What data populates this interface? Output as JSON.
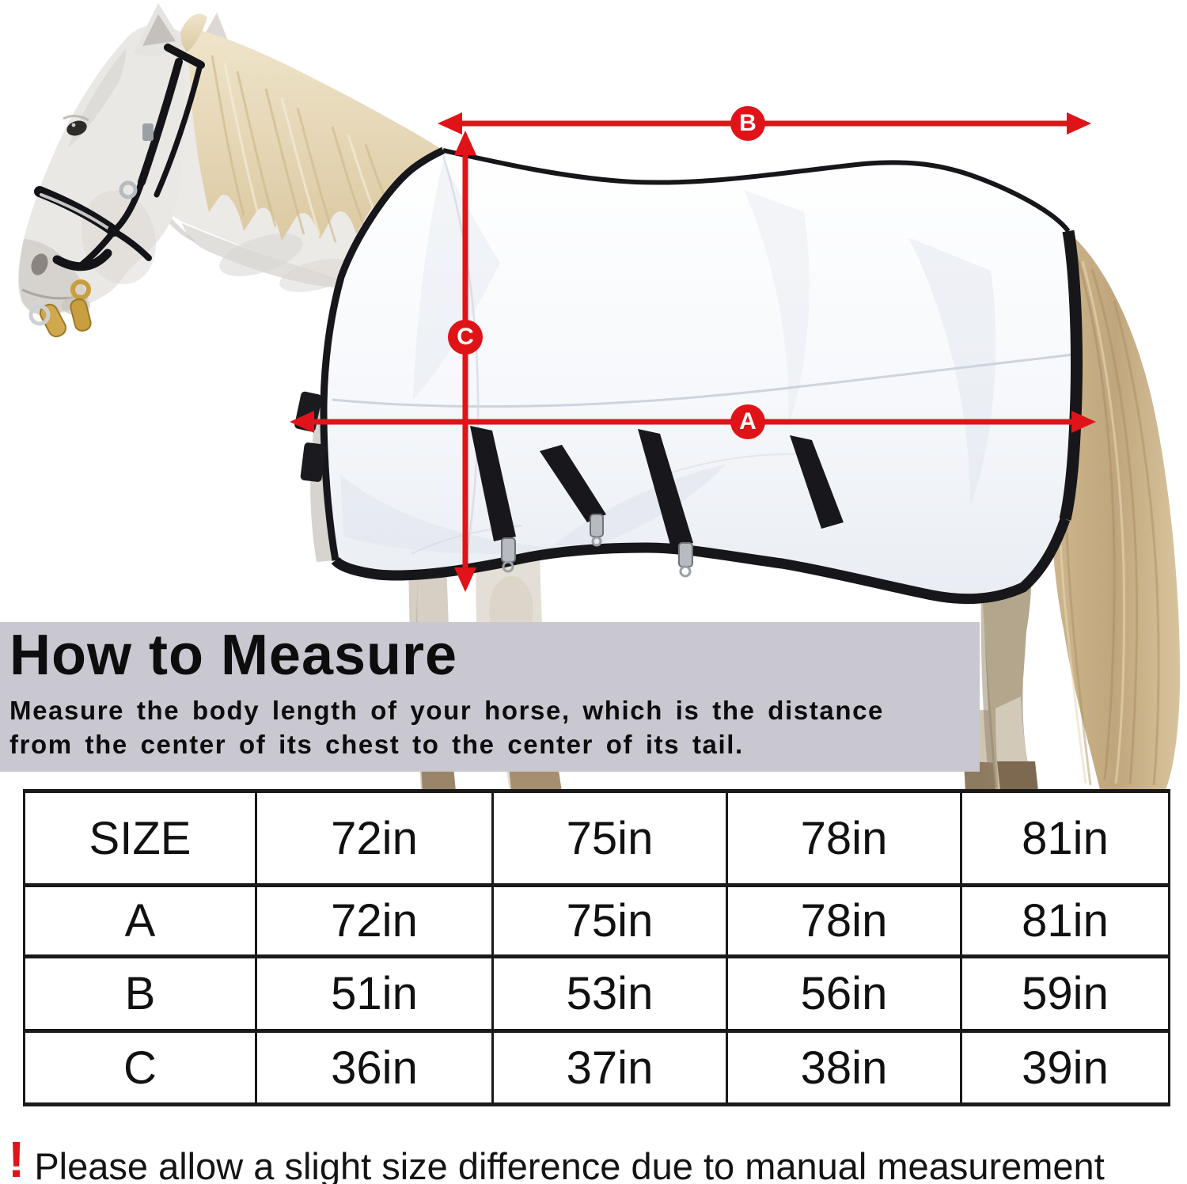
{
  "measurement_diagram": {
    "arrow_color": "#e01418",
    "labels": {
      "a": "A",
      "b": "B",
      "c": "C"
    }
  },
  "how_to_measure": {
    "title": "How to Measure",
    "line1": "Measure the body length of your horse, which is the distance",
    "line2": "from the center of its chest to the center of its tail.",
    "panel_color": "#c9c7d0"
  },
  "size_table": {
    "rows": [
      [
        "SIZE",
        "72in",
        "75in",
        "78in",
        "81in"
      ],
      [
        "A",
        "72in",
        "75in",
        "78in",
        "81in"
      ],
      [
        "B",
        "51in",
        "53in",
        "56in",
        "59in"
      ],
      [
        "C",
        "36in",
        "37in",
        "38in",
        "39in"
      ]
    ]
  },
  "footnote": {
    "mark": "!",
    "text": "Please allow a slight size difference due to manual measurement"
  }
}
